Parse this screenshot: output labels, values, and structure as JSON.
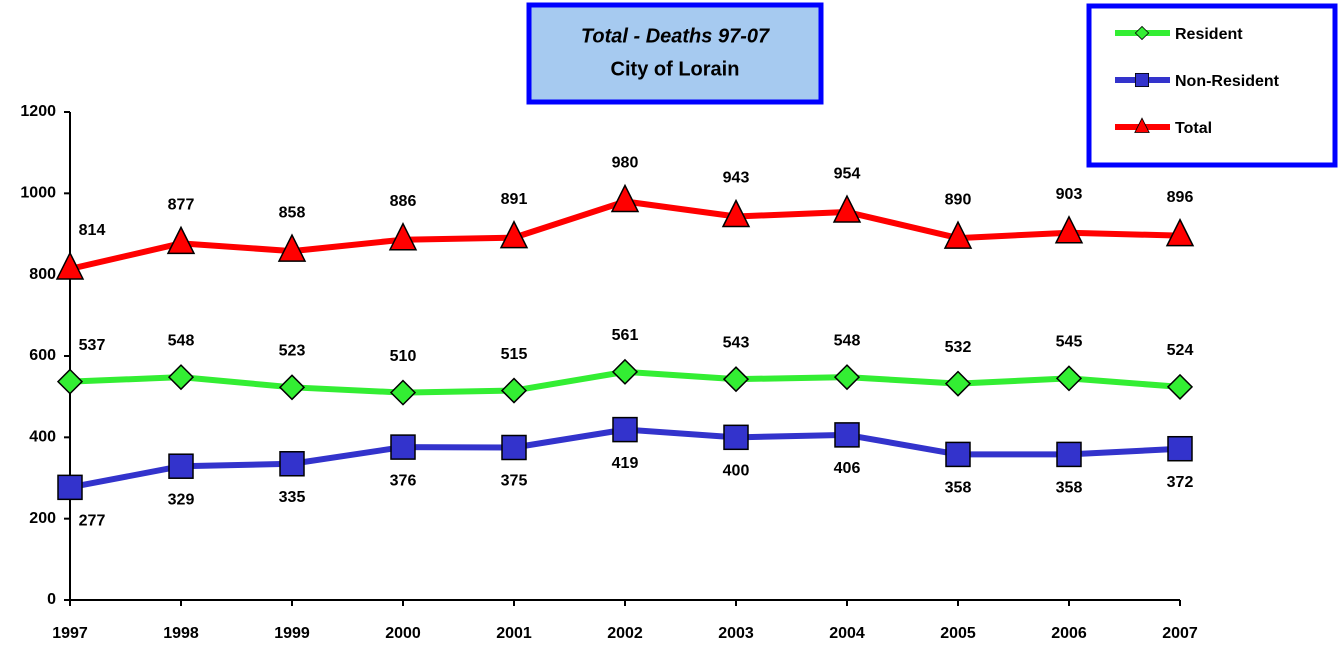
{
  "chart_data": {
    "type": "line",
    "title": "Total - Deaths 97-07",
    "subtitle": "City of Lorain",
    "categories": [
      "1997",
      "1998",
      "1999",
      "2000",
      "2001",
      "2002",
      "2003",
      "2004",
      "2005",
      "2006",
      "2007"
    ],
    "series": [
      {
        "name": "Resident",
        "color": "#33ee33",
        "marker": "diamond",
        "values": [
          537,
          548,
          523,
          510,
          515,
          561,
          543,
          548,
          532,
          545,
          524
        ]
      },
      {
        "name": "Non-Resident",
        "color": "#3333cc",
        "marker": "square",
        "values": [
          277,
          329,
          335,
          376,
          375,
          419,
          400,
          406,
          358,
          358,
          372
        ]
      },
      {
        "name": "Total",
        "color": "#ff0000",
        "marker": "triangle",
        "values": [
          814,
          877,
          858,
          886,
          891,
          980,
          943,
          954,
          890,
          903,
          896
        ]
      }
    ],
    "ylim": [
      0,
      1200
    ],
    "yticks": [
      0,
      200,
      400,
      600,
      800,
      1000,
      1200
    ],
    "grid": false,
    "legend": "top-right"
  }
}
